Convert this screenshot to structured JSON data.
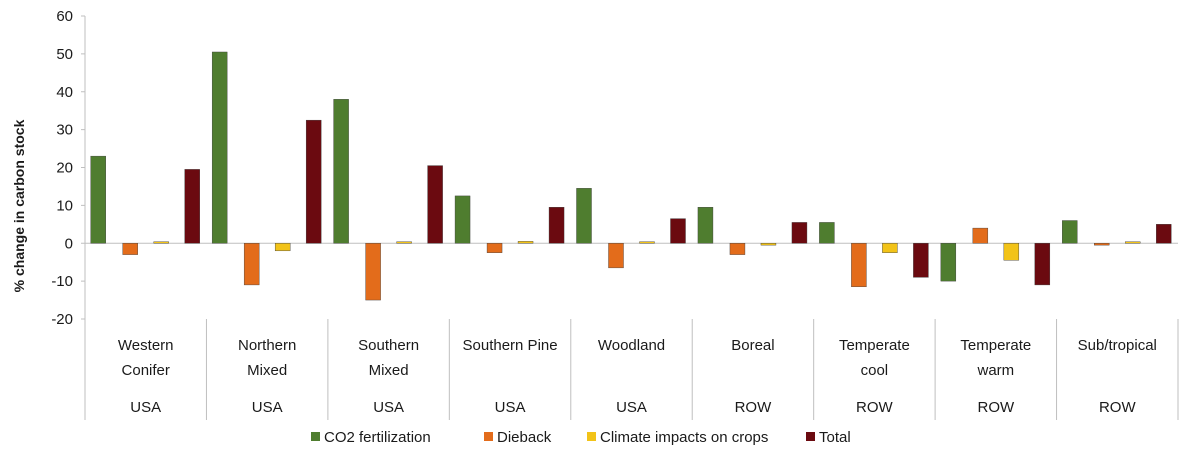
{
  "chart_data": {
    "type": "bar",
    "title": "",
    "xlabel": "",
    "ylabel": "% change in carbon stock",
    "ylim": [
      -20,
      60
    ],
    "yticks": [
      -20,
      -10,
      0,
      10,
      20,
      30,
      40,
      50,
      60
    ],
    "grid": false,
    "legend_position": "bottom",
    "categories": [
      {
        "line1": "Western",
        "line2": "Conifer",
        "group": "USA"
      },
      {
        "line1": "Northern",
        "line2": "Mixed",
        "group": "USA"
      },
      {
        "line1": "Southern",
        "line2": "Mixed",
        "group": "USA"
      },
      {
        "line1": "Southern Pine",
        "line2": "",
        "group": "USA"
      },
      {
        "line1": "Woodland",
        "line2": "",
        "group": "USA"
      },
      {
        "line1": "Boreal",
        "line2": "",
        "group": "ROW"
      },
      {
        "line1": "Temperate",
        "line2": "cool",
        "group": "ROW"
      },
      {
        "line1": "Temperate",
        "line2": "warm",
        "group": "ROW"
      },
      {
        "line1": "Sub/tropical",
        "line2": "",
        "group": "ROW"
      }
    ],
    "series": [
      {
        "name": "CO2 fertilization",
        "color": "#4f7d2f",
        "values": [
          23,
          50.5,
          38,
          12.5,
          14.5,
          9.5,
          5.5,
          -10,
          6
        ]
      },
      {
        "name": "Dieback",
        "color": "#e36c1b",
        "values": [
          -3,
          -11,
          -15,
          -2.5,
          -6.5,
          -3,
          -11.5,
          4,
          -0.5
        ]
      },
      {
        "name": "Climate impacts on crops",
        "color": "#f2c318",
        "values": [
          0,
          -2,
          0,
          0.5,
          0,
          -0.5,
          -2.5,
          -4.5,
          0
        ]
      },
      {
        "name": "Total",
        "color": "#6b0a10",
        "values": [
          19.5,
          32.5,
          20.5,
          9.5,
          6.5,
          5.5,
          -9,
          -11,
          5
        ]
      }
    ]
  }
}
